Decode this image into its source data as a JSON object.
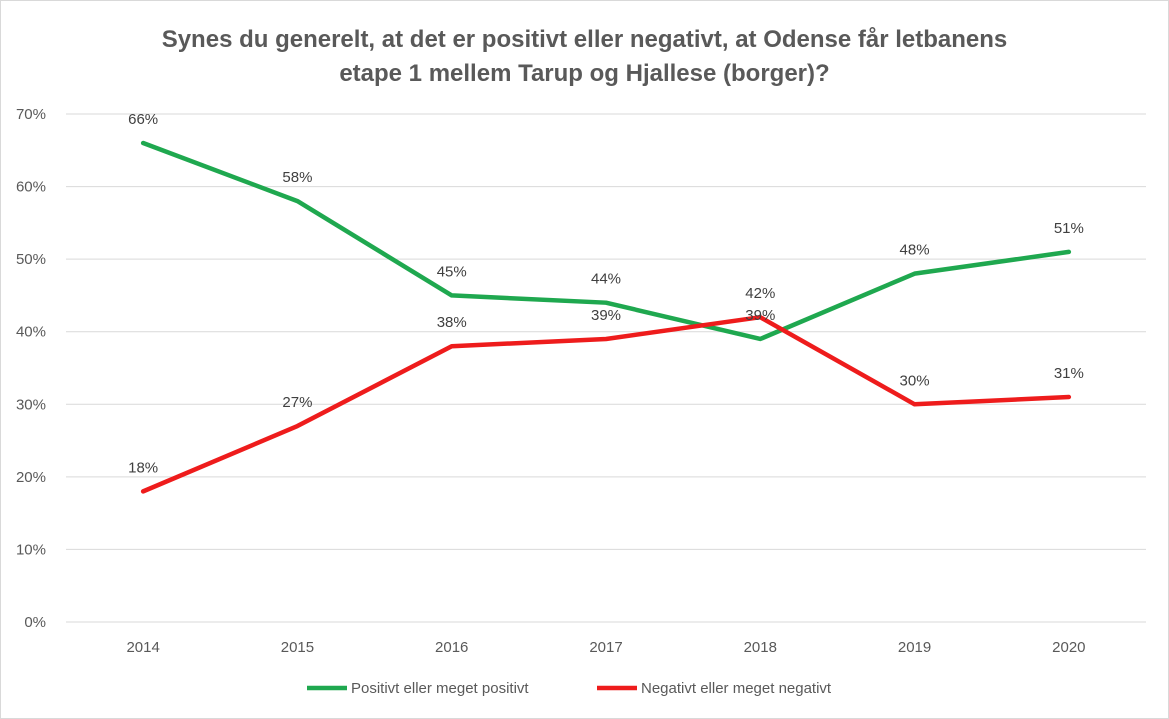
{
  "chart_data": {
    "type": "line",
    "title_lines": [
      "Synes du generelt, at det er positivt eller negativt, at Odense får letbanens",
      "etape 1 mellem Tarup og Hjallese (borger)?"
    ],
    "categories": [
      "2014",
      "2015",
      "2016",
      "2017",
      "2018",
      "2019",
      "2020"
    ],
    "series": [
      {
        "name": "Positivt eller meget positivt",
        "color": "#1fa84f",
        "values": [
          66,
          58,
          45,
          44,
          39,
          48,
          51
        ],
        "labels": [
          "66%",
          "58%",
          "45%",
          "44%",
          "39%",
          "48%",
          "51%"
        ]
      },
      {
        "name": "Negativt eller meget negativt",
        "color": "#ee1c1c",
        "values": [
          18,
          27,
          38,
          39,
          42,
          30,
          31
        ],
        "labels": [
          "18%",
          "27%",
          "38%",
          "39%",
          "42%",
          "30%",
          "31%"
        ]
      }
    ],
    "yticks": [
      "0%",
      "10%",
      "20%",
      "30%",
      "40%",
      "50%",
      "60%",
      "70%"
    ],
    "ylim": [
      0,
      70
    ],
    "grid": true,
    "legend_position": "bottom"
  }
}
